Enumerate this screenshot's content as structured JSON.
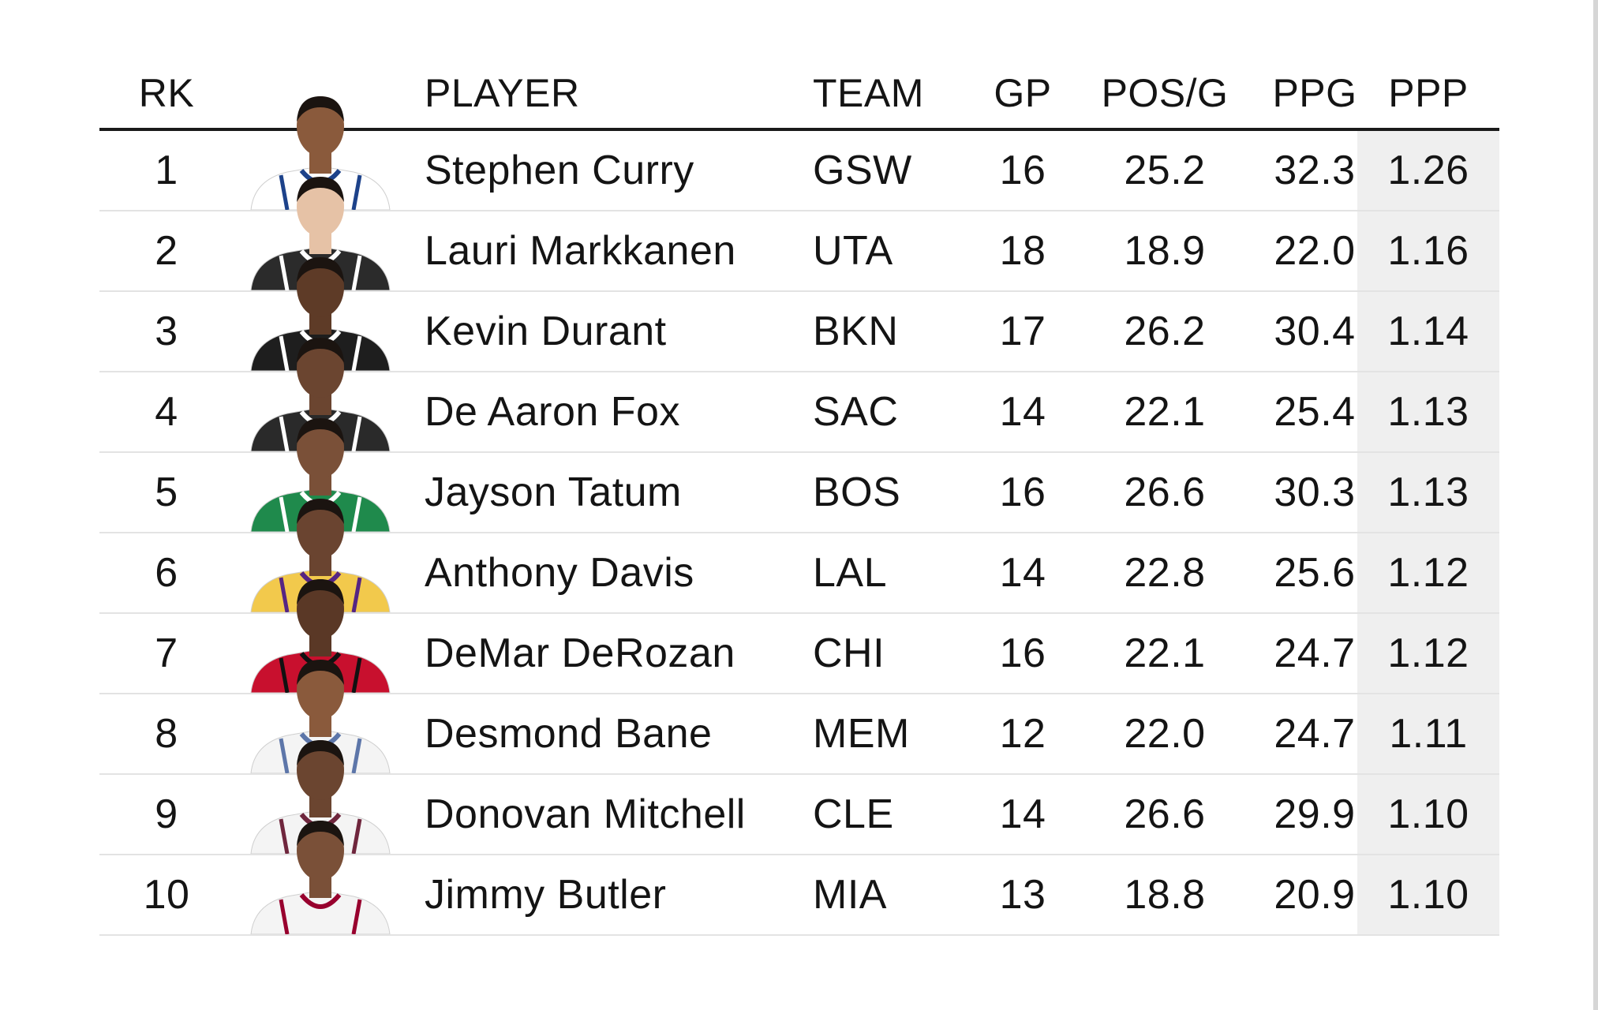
{
  "columns": {
    "rank": "RK",
    "player": "PLAYER",
    "team": "TEAM",
    "gp": "GP",
    "pos_g": "POS/G",
    "ppg": "PPG",
    "ppp": "PPP"
  },
  "rows": [
    {
      "rank": "1",
      "player": "Stephen Curry",
      "team": "GSW",
      "gp": "16",
      "pos_g": "25.2",
      "ppg": "32.3",
      "ppp": "1.26",
      "jersey": "#ffffff",
      "trim": "#1d428a",
      "skin": "#8a5a3c"
    },
    {
      "rank": "2",
      "player": "Lauri Markkanen",
      "team": "UTA",
      "gp": "18",
      "pos_g": "18.9",
      "ppg": "22.0",
      "ppp": "1.16",
      "jersey": "#2b2b2b",
      "trim": "#ffffff",
      "skin": "#e6c2a6"
    },
    {
      "rank": "3",
      "player": "Kevin Durant",
      "team": "BKN",
      "gp": "17",
      "pos_g": "26.2",
      "ppg": "30.4",
      "ppp": "1.14",
      "jersey": "#1e1e1e",
      "trim": "#ffffff",
      "skin": "#5e3b27"
    },
    {
      "rank": "4",
      "player": "De Aaron Fox",
      "team": "SAC",
      "gp": "14",
      "pos_g": "22.1",
      "ppg": "25.4",
      "ppp": "1.13",
      "jersey": "#2a2a2a",
      "trim": "#ffffff",
      "skin": "#6b4530"
    },
    {
      "rank": "5",
      "player": "Jayson Tatum",
      "team": "BOS",
      "gp": "16",
      "pos_g": "26.6",
      "ppg": "30.3",
      "ppp": "1.13",
      "jersey": "#1f8a4c",
      "trim": "#ffffff",
      "skin": "#7a5038"
    },
    {
      "rank": "6",
      "player": "Anthony Davis",
      "team": "LAL",
      "gp": "14",
      "pos_g": "22.8",
      "ppg": "25.6",
      "ppp": "1.12",
      "jersey": "#f2c94c",
      "trim": "#552583",
      "skin": "#6a4430"
    },
    {
      "rank": "7",
      "player": "DeMar DeRozan",
      "team": "CHI",
      "gp": "16",
      "pos_g": "22.1",
      "ppg": "24.7",
      "ppp": "1.12",
      "jersey": "#c8102e",
      "trim": "#111111",
      "skin": "#5a3826"
    },
    {
      "rank": "8",
      "player": "Desmond Bane",
      "team": "MEM",
      "gp": "12",
      "pos_g": "22.0",
      "ppg": "24.7",
      "ppp": "1.11",
      "jersey": "#f4f4f4",
      "trim": "#5d76a9",
      "skin": "#8a5a3c"
    },
    {
      "rank": "9",
      "player": "Donovan Mitchell",
      "team": "CLE",
      "gp": "14",
      "pos_g": "26.6",
      "ppg": "29.9",
      "ppp": "1.10",
      "jersey": "#f4f4f4",
      "trim": "#6f263d",
      "skin": "#6b4530"
    },
    {
      "rank": "10",
      "player": "Jimmy Butler",
      "team": "MIA",
      "gp": "13",
      "pos_g": "18.8",
      "ppg": "20.9",
      "ppp": "1.10",
      "jersey": "#f4f4f4",
      "trim": "#98002e",
      "skin": "#7a5038"
    }
  ],
  "colors": {
    "header_rule": "#1a1a1a",
    "row_divider": "#e3e3e3",
    "ppp_highlight": "#efefef",
    "text": "#141414"
  }
}
